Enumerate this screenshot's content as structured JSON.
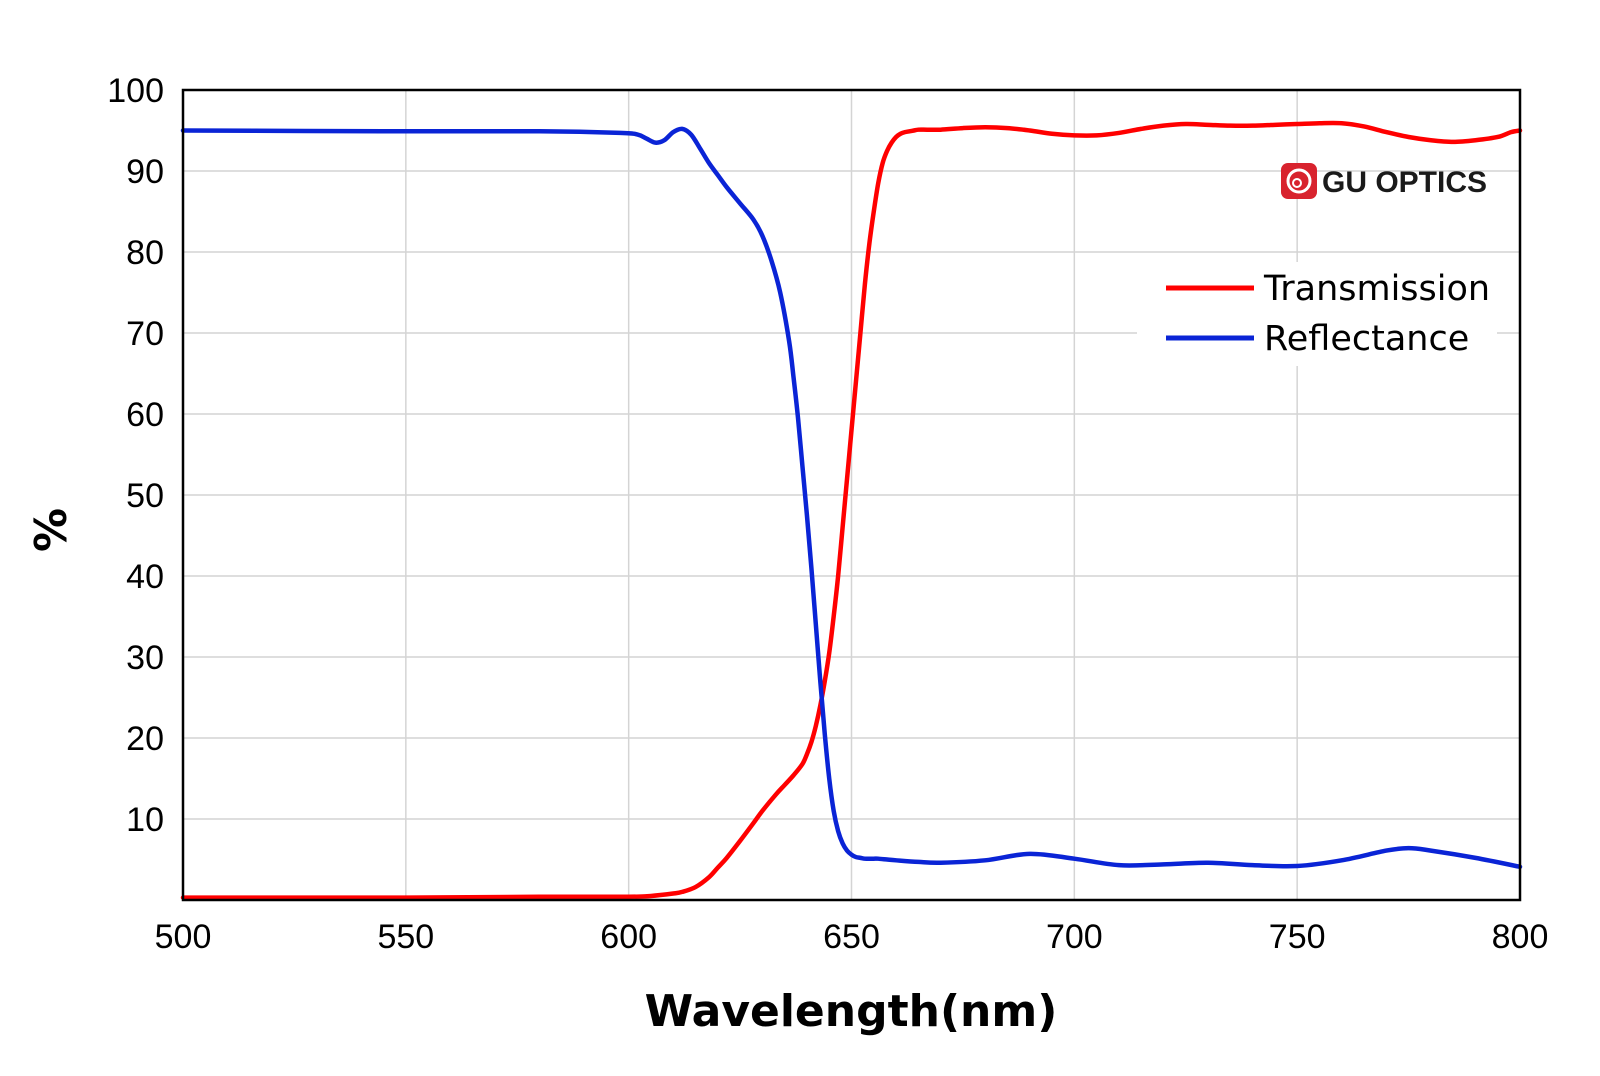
{
  "chart_data": {
    "type": "line",
    "title": "",
    "xlabel": "Wavelength(nm)",
    "ylabel": "%",
    "xlim": [
      500,
      800
    ],
    "ylim": [
      0,
      100
    ],
    "xticks": [
      500,
      550,
      600,
      650,
      700,
      750,
      800
    ],
    "yticks": [
      10,
      20,
      30,
      40,
      50,
      60,
      70,
      80,
      90,
      100
    ],
    "grid": true,
    "legend_position": "top-right",
    "logo_text": "GU OPTICS",
    "colors": {
      "transmission": "#ff0000",
      "reflectance": "#0a24d6",
      "logo": "#d8232e"
    },
    "series": [
      {
        "name": "Transmission",
        "color": "#ff0000",
        "x": [
          500,
          550,
          580,
          600,
          605,
          610,
          612,
          615,
          618,
          620,
          622,
          625,
          628,
          630,
          633,
          635,
          637,
          639,
          640,
          641,
          642,
          643,
          644,
          645,
          646,
          647,
          648,
          649,
          650,
          651,
          652,
          653,
          654,
          655,
          656,
          657,
          658,
          659,
          660,
          661,
          662,
          663,
          664,
          665,
          667,
          670,
          675,
          680,
          685,
          690,
          695,
          700,
          705,
          710,
          715,
          720,
          725,
          730,
          735,
          740,
          745,
          750,
          755,
          760,
          765,
          770,
          775,
          780,
          785,
          790,
          795,
          798,
          800
        ],
        "y": [
          0.3,
          0.3,
          0.4,
          0.4,
          0.5,
          0.8,
          1,
          1.6,
          2.8,
          4,
          5.2,
          7.3,
          9.5,
          11,
          13,
          14.2,
          15.4,
          16.8,
          18,
          19.5,
          21.5,
          24,
          27,
          30.5,
          35,
          40,
          46,
          52,
          58,
          64,
          70,
          76,
          81,
          85,
          88.5,
          91,
          92.5,
          93.5,
          94.2,
          94.6,
          94.8,
          94.9,
          95,
          95.1,
          95.1,
          95.1,
          95.3,
          95.4,
          95.3,
          95,
          94.6,
          94.4,
          94.4,
          94.7,
          95.2,
          95.6,
          95.8,
          95.7,
          95.6,
          95.6,
          95.7,
          95.8,
          95.9,
          95.9,
          95.5,
          94.8,
          94.2,
          93.8,
          93.6,
          93.8,
          94.2,
          94.8,
          95
        ]
      },
      {
        "name": "Reflectance",
        "color": "#0a24d6",
        "x": [
          500,
          550,
          580,
          598,
          602,
          604,
          606,
          608,
          610,
          612,
          614,
          616,
          618,
          620,
          622,
          625,
          628,
          630,
          632,
          634,
          636,
          637,
          638,
          639,
          640,
          641,
          642,
          643,
          644,
          645,
          646,
          647,
          648,
          649,
          650,
          651,
          652,
          653,
          654,
          655,
          656,
          658,
          660,
          665,
          670,
          680,
          690,
          700,
          710,
          720,
          730,
          740,
          750,
          760,
          770,
          775,
          780,
          790,
          800
        ],
        "y": [
          95,
          94.9,
          94.9,
          94.7,
          94.5,
          94,
          93.5,
          93.8,
          94.8,
          95.2,
          94.5,
          92.8,
          91,
          89.5,
          88,
          86,
          84,
          82,
          79,
          75,
          69,
          64.5,
          59.5,
          53.5,
          47.5,
          41,
          34,
          27,
          20.5,
          15,
          11,
          8.5,
          7,
          6.1,
          5.6,
          5.3,
          5.2,
          5.1,
          5.1,
          5.1,
          5.1,
          5,
          4.9,
          4.7,
          4.6,
          4.9,
          5.7,
          5.1,
          4.3,
          4.4,
          4.6,
          4.3,
          4.2,
          4.9,
          6.1,
          6.4,
          6.1,
          5.2,
          4.1
        ]
      }
    ]
  }
}
